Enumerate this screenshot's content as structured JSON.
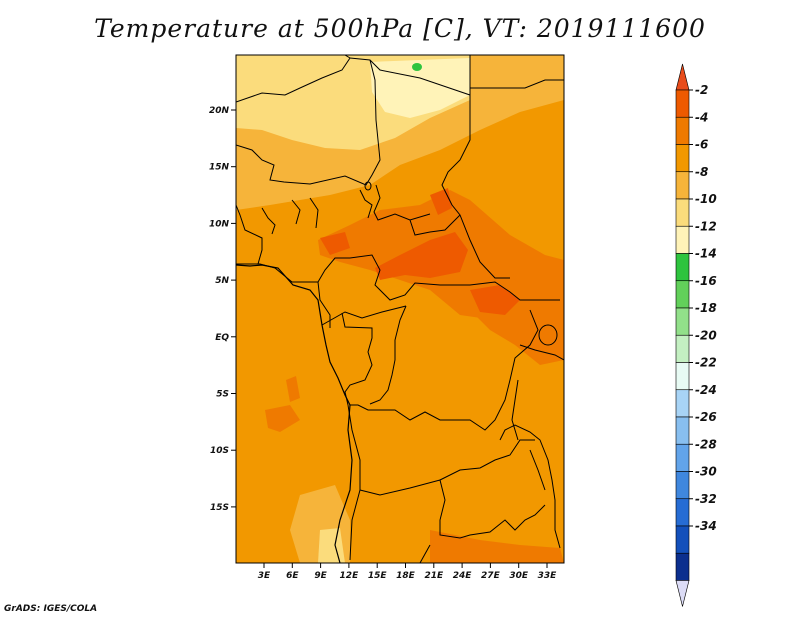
{
  "title": "Temperature at 500hPa [C], VT: 2019111600",
  "credit": "GrADS: IGES/COLA",
  "x_ticks": [
    "3E",
    "6E",
    "9E",
    "12E",
    "15E",
    "18E",
    "21E",
    "24E",
    "27E",
    "30E",
    "33E"
  ],
  "y_ticks": [
    "20N",
    "15N",
    "10N",
    "5N",
    "EQ",
    "5S",
    "10S",
    "15S"
  ],
  "colorbar": {
    "labels": [
      "-2",
      "-4",
      "-6",
      "-8",
      "-10",
      "-12",
      "-14",
      "-16",
      "-18",
      "-20",
      "-22",
      "-24",
      "-26",
      "-28",
      "-30",
      "-32",
      "-34"
    ],
    "colors": [
      "#ee5a00",
      "#ef7a00",
      "#f29800",
      "#f6b43a",
      "#fbdc7c",
      "#fff3b8",
      "#2ec43e",
      "#62d05a",
      "#92e08a",
      "#c4f0c2",
      "#e8fbf4",
      "#a8d4f6",
      "#88bff0",
      "#62a4ea",
      "#3f87de",
      "#266cd4",
      "#1350bb",
      "#0b2f8e"
    ],
    "top_cap_color": "#e84c1b",
    "bottom_cap_color": "#dcdcf6"
  },
  "fill_colors": {
    "base": "#f29800",
    "warm": "#ef7a00",
    "hot": "#ee5a00",
    "cool": "#f6b43a",
    "cooler": "#fbdc7c",
    "coolest": "#fff3b8",
    "green": "#2ec43e"
  }
}
